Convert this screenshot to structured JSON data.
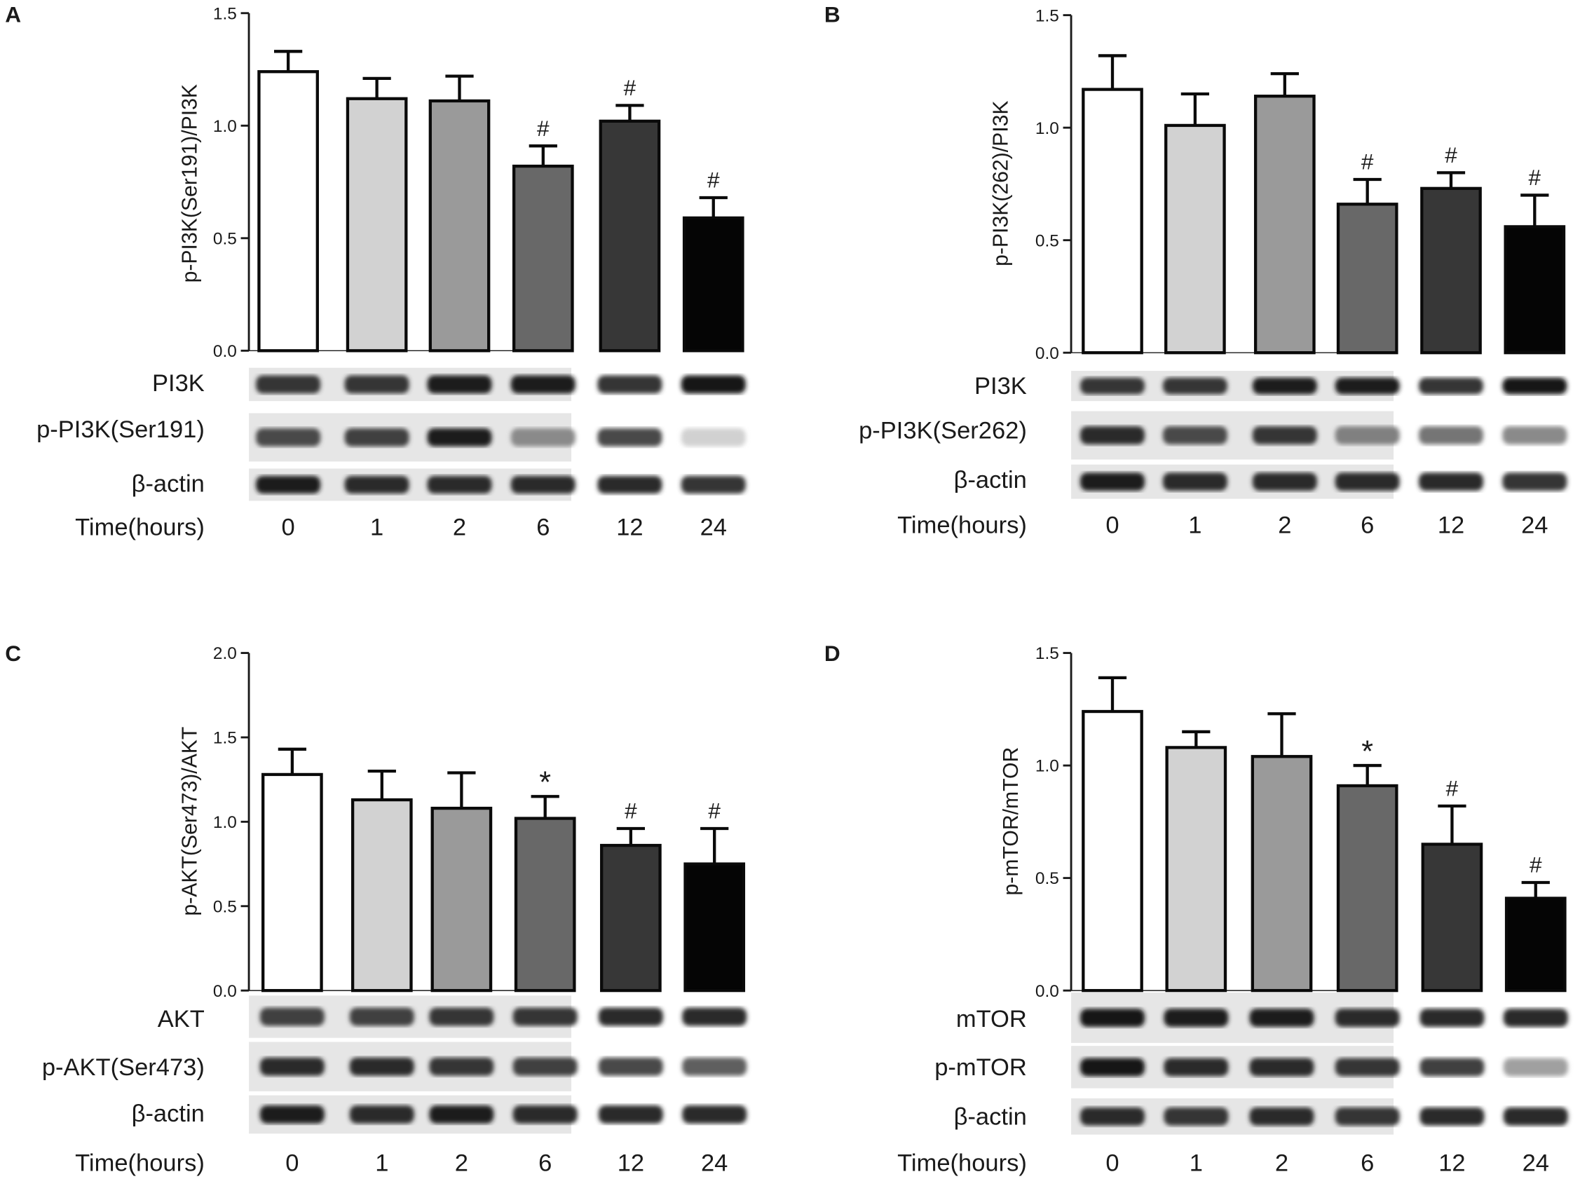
{
  "chart_data": [
    {
      "panel": "A",
      "type": "bar",
      "ylabel": "p-PI3K(Ser191)/PI3K",
      "ylim": [
        0,
        1.5
      ],
      "yticks": [
        "0.0",
        "0.5",
        "1.0",
        "1.5"
      ],
      "categories": [
        "0",
        "1",
        "2",
        "6",
        "12",
        "24"
      ],
      "values": [
        1.24,
        1.12,
        1.11,
        0.82,
        1.02,
        0.59
      ],
      "errors": [
        0.09,
        0.09,
        0.11,
        0.09,
        0.07,
        0.09
      ],
      "markers": [
        "",
        "",
        "",
        "#",
        "#",
        "#"
      ],
      "blot_labels": [
        "PI3K",
        "p-PI3K(Ser191)",
        "β-actin"
      ],
      "blot_intensities": [
        [
          0.85,
          0.85,
          0.95,
          0.95,
          0.85,
          1.0
        ],
        [
          0.75,
          0.8,
          0.95,
          0.45,
          0.75,
          0.12
        ],
        [
          0.95,
          0.9,
          0.9,
          0.9,
          0.9,
          0.85
        ]
      ],
      "xlabel": "Time(hours)",
      "bar_colors": [
        "#ffffff",
        "#d2d2d2",
        "#9a9a9a",
        "#686868",
        "#373737",
        "#050505"
      ]
    },
    {
      "panel": "B",
      "type": "bar",
      "ylabel": "p-PI3K(262)/PI3K",
      "ylim": [
        0,
        1.5
      ],
      "yticks": [
        "0.0",
        "0.5",
        "1.0",
        "1.5"
      ],
      "categories": [
        "0",
        "1",
        "2",
        "6",
        "12",
        "24"
      ],
      "values": [
        1.17,
        1.01,
        1.14,
        0.66,
        0.73,
        0.56
      ],
      "errors": [
        0.15,
        0.14,
        0.1,
        0.11,
        0.07,
        0.14
      ],
      "markers": [
        "",
        "",
        "",
        "#",
        "#",
        "#"
      ],
      "blot_labels": [
        "PI3K",
        "p-PI3K(Ser262)",
        "β-actin"
      ],
      "blot_intensities": [
        [
          0.85,
          0.85,
          0.95,
          0.95,
          0.85,
          1.0
        ],
        [
          0.9,
          0.75,
          0.85,
          0.5,
          0.55,
          0.45
        ],
        [
          0.95,
          0.9,
          0.9,
          0.9,
          0.9,
          0.85
        ]
      ],
      "xlabel": "Time(hours)",
      "bar_colors": [
        "#ffffff",
        "#d2d2d2",
        "#9a9a9a",
        "#686868",
        "#373737",
        "#050505"
      ]
    },
    {
      "panel": "C",
      "type": "bar",
      "ylabel": "p-AKT(Ser473)/AKT",
      "ylim": [
        0,
        2.0
      ],
      "yticks": [
        "0.0",
        "0.5",
        "1.0",
        "1.5",
        "2.0"
      ],
      "categories": [
        "0",
        "1",
        "2",
        "6",
        "12",
        "24"
      ],
      "values": [
        1.28,
        1.13,
        1.08,
        1.02,
        0.86,
        0.75
      ],
      "errors": [
        0.15,
        0.17,
        0.21,
        0.13,
        0.1,
        0.21
      ],
      "markers": [
        "",
        "",
        "",
        "*",
        "#",
        "#"
      ],
      "blot_labels": [
        "AKT",
        "p-AKT(Ser473)",
        "β-actin"
      ],
      "blot_intensities": [
        [
          0.8,
          0.8,
          0.85,
          0.85,
          0.9,
          0.9
        ],
        [
          0.9,
          0.9,
          0.85,
          0.8,
          0.75,
          0.65
        ],
        [
          0.95,
          0.9,
          0.95,
          0.9,
          0.9,
          0.9
        ]
      ],
      "xlabel": "Time(hours)",
      "bar_colors": [
        "#ffffff",
        "#d2d2d2",
        "#9a9a9a",
        "#686868",
        "#373737",
        "#050505"
      ]
    },
    {
      "panel": "D",
      "type": "bar",
      "ylabel": "p-mTOR/mTOR",
      "ylim": [
        0,
        1.5
      ],
      "yticks": [
        "0.0",
        "0.5",
        "1.0",
        "1.5"
      ],
      "categories": [
        "0",
        "1",
        "2",
        "6",
        "12",
        "24"
      ],
      "values": [
        1.24,
        1.08,
        1.04,
        0.91,
        0.65,
        0.41
      ],
      "errors": [
        0.15,
        0.07,
        0.19,
        0.09,
        0.17,
        0.07
      ],
      "markers": [
        "",
        "",
        "",
        "*",
        "#",
        "#"
      ],
      "blot_labels": [
        "mTOR",
        "p-mTOR",
        "β-actin"
      ],
      "blot_intensities": [
        [
          1.0,
          0.95,
          0.95,
          0.9,
          0.9,
          0.9
        ],
        [
          1.0,
          0.9,
          0.9,
          0.85,
          0.8,
          0.35
        ],
        [
          0.9,
          0.85,
          0.9,
          0.85,
          0.9,
          0.9
        ]
      ],
      "xlabel": "Time(hours)",
      "bar_colors": [
        "#ffffff",
        "#d2d2d2",
        "#9a9a9a",
        "#686868",
        "#373737",
        "#050505"
      ]
    }
  ]
}
